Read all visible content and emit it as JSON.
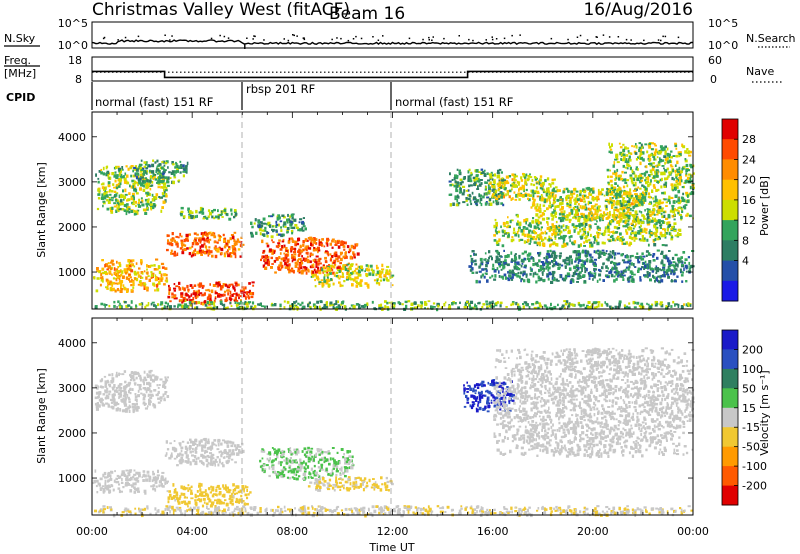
{
  "header": {
    "station": "Christmas Valley West (fitACF)",
    "beam": "Beam 16",
    "date": "16/Aug/2016"
  },
  "strips": {
    "nsky_label": "N.Sky",
    "nsearch_label": "N.Search",
    "nsky_ticks": [
      "10^5",
      "10^0"
    ],
    "nsearch_ticks": [
      "10^5",
      "10^0"
    ],
    "freq_label_1": "Freq.",
    "freq_label_2": "[MHz]",
    "freq_ticks": [
      "18",
      "8"
    ],
    "nave_ticks": [
      "60",
      "0"
    ],
    "nave_label": "Nave",
    "cpid_label": "CPID"
  },
  "cpid_modes": [
    {
      "label": "normal (fast) 151 RF",
      "start_h": 0,
      "end_h": 6
    },
    {
      "label": "rbsp 201 RF",
      "start_h": 6,
      "end_h": 12
    },
    {
      "label": "normal (fast) 151 RF",
      "start_h": 12,
      "end_h": 24
    }
  ],
  "freq_series": {
    "segments": [
      {
        "start_h": 0,
        "end_h": 2.9,
        "freq_mhz": 12
      },
      {
        "start_h": 2.9,
        "end_h": 15.0,
        "freq_mhz": 9.5
      },
      {
        "start_h": 15.0,
        "end_h": 24,
        "freq_mhz": 12
      }
    ],
    "nave_level": 22
  },
  "nsky_series": {
    "level_log": 0.9,
    "dip_h": 6.1
  },
  "panels": {
    "power": {
      "ylabel": "Slant Range [km]",
      "cbar_label": "Power [dB]",
      "cbar_ticks": [
        "28",
        "24",
        "20",
        "16",
        "12",
        "8",
        "4"
      ],
      "cbar_colors": [
        "#e00000",
        "#ff4a00",
        "#ff8c00",
        "#ffc000",
        "#ccde00",
        "#33a45c",
        "#2d7d63",
        "#244fa8",
        "#1a1ae6"
      ]
    },
    "velocity": {
      "ylabel": "Slant Range [km]",
      "cbar_label": "Velocity [m s⁻¹]",
      "cbar_ticks": [
        "200",
        "100",
        "50",
        "15",
        "-15",
        "-50",
        "-100",
        "-200"
      ],
      "cbar_colors": [
        "#1a1ac8",
        "#2a50c0",
        "#2f7f60",
        "#4bc24b",
        "#c8c8c8",
        "#f0c832",
        "#ff9a00",
        "#ff5a00",
        "#e00000"
      ]
    }
  },
  "xaxis": {
    "label": "Time UT",
    "ticks": [
      "00:00",
      "04:00",
      "08:00",
      "12:00",
      "16:00",
      "20:00",
      "00:00"
    ]
  },
  "yaxis": {
    "ticks": [
      "4000",
      "3000",
      "2000",
      "1000"
    ]
  },
  "chart_data": {
    "type": "heatmap",
    "title": "Christmas Valley West (fitACF) Beam 16 16/Aug/2016",
    "xlabel": "Time UT",
    "ylabel": "Slant Range [km]",
    "xlim_hours": [
      0,
      24
    ],
    "ylim_km": [
      180,
      4550
    ],
    "x_ticks_hours": [
      0,
      4,
      8,
      12,
      16,
      20,
      24
    ],
    "y_ticks_km": [
      1000,
      2000,
      3000,
      4000
    ],
    "power_dB_range": [
      0,
      30
    ],
    "velocity_range": [
      -250,
      250
    ],
    "power_echo_regions": [
      {
        "t0": 0.1,
        "t1": 3.0,
        "r0": 2300,
        "r1": 3400,
        "power_dB": 14
      },
      {
        "t0": 1.6,
        "t1": 3.8,
        "r0": 3000,
        "r1": 3500,
        "power_dB": 10
      },
      {
        "t0": 2.9,
        "t1": 6.0,
        "r0": 1350,
        "r1": 1900,
        "power_dB": 25
      },
      {
        "t0": 3.5,
        "t1": 5.8,
        "r0": 2200,
        "r1": 2450,
        "power_dB": 12
      },
      {
        "t0": 0.0,
        "t1": 3.0,
        "r0": 600,
        "r1": 1300,
        "power_dB": 20
      },
      {
        "t0": 3.0,
        "t1": 6.4,
        "r0": 300,
        "r1": 800,
        "power_dB": 27
      },
      {
        "t0": 6.3,
        "t1": 8.5,
        "r0": 1800,
        "r1": 2300,
        "power_dB": 10
      },
      {
        "t0": 6.7,
        "t1": 10.6,
        "r0": 1000,
        "r1": 1800,
        "power_dB": 26
      },
      {
        "t0": 8.7,
        "t1": 12.0,
        "r0": 700,
        "r1": 1200,
        "power_dB": 16
      },
      {
        "t0": 0.0,
        "t1": 24.0,
        "r0": 200,
        "r1": 380,
        "power_dB": 12
      },
      {
        "t0": 14.2,
        "t1": 16.5,
        "r0": 2500,
        "r1": 3300,
        "power_dB": 10
      },
      {
        "t0": 15.8,
        "t1": 18.5,
        "r0": 2600,
        "r1": 3200,
        "power_dB": 16
      },
      {
        "t0": 16.0,
        "t1": 23.5,
        "r0": 1600,
        "r1": 2300,
        "power_dB": 14
      },
      {
        "t0": 17.5,
        "t1": 22.0,
        "r0": 2200,
        "r1": 2900,
        "power_dB": 16
      },
      {
        "t0": 20.5,
        "t1": 24.0,
        "r0": 2100,
        "r1": 3900,
        "power_dB": 14
      },
      {
        "t0": 15.0,
        "t1": 24.0,
        "r0": 800,
        "r1": 1500,
        "power_dB": 8
      }
    ],
    "velocity_echo_regions": [
      {
        "t0": 0.1,
        "t1": 3.0,
        "r0": 2500,
        "r1": 3400,
        "velocity": 0
      },
      {
        "t0": 2.9,
        "t1": 6.0,
        "r0": 1300,
        "r1": 1900,
        "velocity": 0
      },
      {
        "t0": 0.0,
        "t1": 3.0,
        "r0": 700,
        "r1": 1200,
        "velocity": 0
      },
      {
        "t0": 3.0,
        "t1": 6.3,
        "r0": 400,
        "r1": 900,
        "velocity": -60
      },
      {
        "t0": 6.6,
        "t1": 10.4,
        "r0": 1000,
        "r1": 1700,
        "velocity": 40
      },
      {
        "t0": 8.5,
        "t1": 12.0,
        "r0": 750,
        "r1": 1050,
        "velocity": -40
      },
      {
        "t0": 0.0,
        "t1": 24.0,
        "r0": 200,
        "r1": 400,
        "velocity": -20
      },
      {
        "t0": 14.8,
        "t1": 16.8,
        "r0": 2500,
        "r1": 3200,
        "velocity": 220
      },
      {
        "t0": 16.0,
        "t1": 24.0,
        "r0": 1500,
        "r1": 3900,
        "velocity": 0
      }
    ]
  }
}
